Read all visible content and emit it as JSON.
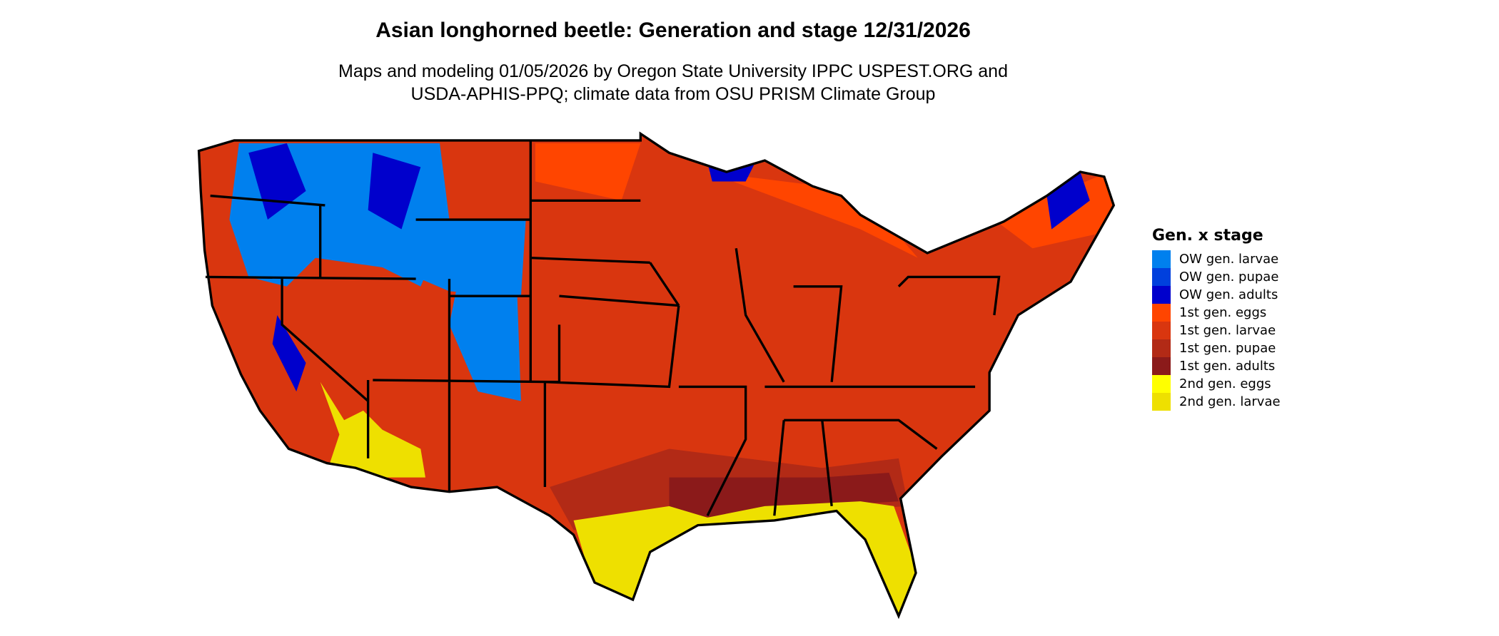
{
  "title": "Asian longhorned beetle: Generation and stage 12/31/2026",
  "subtitle_line1": "Maps and modeling 01/05/2026 by Oregon State University IPPC USPEST.ORG and",
  "subtitle_line2": "USDA-APHIS-PPQ; climate data from OSU PRISM Climate Group",
  "legend": {
    "title": "Gen. x stage",
    "items": [
      {
        "label": "OW gen. larvae",
        "color": "#0080EE"
      },
      {
        "label": "OW gen. pupae",
        "color": "#0040DD"
      },
      {
        "label": "OW gen. adults",
        "color": "#0000CC"
      },
      {
        "label": "1st gen. eggs",
        "color": "#FF4500"
      },
      {
        "label": "1st gen. larvae",
        "color": "#D9360F"
      },
      {
        "label": "1st gen. pupae",
        "color": "#B22A16"
      },
      {
        "label": "1st gen. adults",
        "color": "#8B1A1A"
      },
      {
        "label": "2nd gen. eggs",
        "color": "#FFFF00"
      },
      {
        "label": "2nd gen. larvae",
        "color": "#EEE000"
      }
    ]
  }
}
